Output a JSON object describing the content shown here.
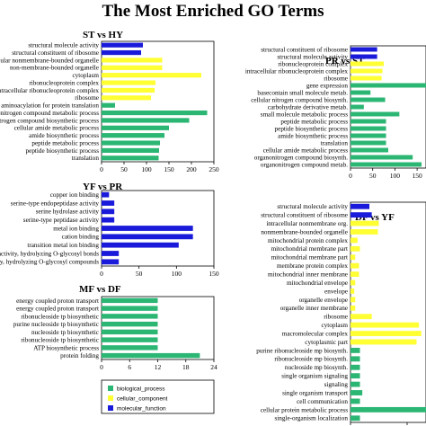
{
  "title": "The Most Enriched GO Terms",
  "legend": [
    {
      "name": "biological_process",
      "color": "#2bb673"
    },
    {
      "name": "cellular_component",
      "color": "#ffff33"
    },
    {
      "name": "molecular_function",
      "color": "#1a1adb"
    }
  ],
  "chart_data": [
    {
      "type": "bar",
      "orientation": "horizontal",
      "title": "ST vs HY",
      "xlim": [
        0,
        250
      ],
      "xticks": [
        0,
        50,
        100,
        150,
        200,
        250
      ],
      "grid": false,
      "categories": [
        "structural molecule activity",
        "structural constituent of ribosome",
        "intracellular nonmembrane-bounded organelle",
        "non-membrane-bounded organelle",
        "cytoplasm",
        "ribonucleoprotein complex",
        "intracellular ribonucleoprotein complex",
        "ribosome",
        "tRNA aminoacylation for protein translation",
        "organonitrogen compound metabolic process",
        "organonitrogen compound biosynthetic process",
        "cellular amide metabolic process",
        "amide biosynthetic process",
        "peptide metabolic process",
        "peptide biosynthetic process",
        "translation"
      ],
      "values": [
        92,
        88,
        135,
        135,
        222,
        120,
        118,
        110,
        30,
        235,
        195,
        150,
        140,
        130,
        128,
        127
      ],
      "classes": [
        "molecular_function",
        "molecular_function",
        "cellular_component",
        "cellular_component",
        "cellular_component",
        "cellular_component",
        "cellular_component",
        "cellular_component",
        "biological_process",
        "biological_process",
        "biological_process",
        "biological_process",
        "biological_process",
        "biological_process",
        "biological_process",
        "biological_process"
      ]
    },
    {
      "type": "bar",
      "orientation": "horizontal",
      "title": "PR vs ST",
      "xlim": [
        0,
        170
      ],
      "xticks": [
        0,
        50,
        100,
        150
      ],
      "grid": false,
      "categories": [
        "structural constituent of ribosome",
        "structural molecule activity",
        "ribonucleoprotein complex",
        "intracellular ribonucleoprotein complex",
        "ribosome",
        "gene expression",
        "basecontain small molecule metab.",
        "cellular nitrogen compound biosynth.",
        "carbohydrate derivative metab.",
        "small molecule metabolic process",
        "peptide metabolic process",
        "peptide biosynthetic process",
        "amide biosynthetic process",
        "translation",
        "cellular amide metabolic process",
        "organonitrogen compound biosynth.",
        "organonitrogen compound metab."
      ],
      "values": [
        60,
        60,
        75,
        72,
        70,
        170,
        45,
        78,
        30,
        110,
        80,
        80,
        80,
        80,
        85,
        140,
        160
      ],
      "classes": [
        "molecular_function",
        "molecular_function",
        "cellular_component",
        "cellular_component",
        "cellular_component",
        "biological_process",
        "biological_process",
        "biological_process",
        "biological_process",
        "biological_process",
        "biological_process",
        "biological_process",
        "biological_process",
        "biological_process",
        "biological_process",
        "biological_process",
        "biological_process"
      ]
    },
    {
      "type": "bar",
      "orientation": "horizontal",
      "title": "YF vs PR",
      "xlim": [
        0,
        150
      ],
      "xticks": [
        0,
        50,
        100,
        150
      ],
      "grid": false,
      "categories": [
        "copper ion binding",
        "serine-type endopeptidase activity",
        "serine hydrolase activity",
        "serine-type peptidase activity",
        "metal ion binding",
        "cation binding",
        "transition metal ion binding",
        "hydrolase activity, hydrolyzing O-glycosyl bonds",
        "hydrolase activity, hydrolyzing O-glycosyl compounds"
      ],
      "values": [
        10,
        17,
        17,
        17,
        122,
        122,
        103,
        23,
        23
      ],
      "classes": [
        "molecular_function",
        "molecular_function",
        "molecular_function",
        "molecular_function",
        "molecular_function",
        "molecular_function",
        "molecular_function",
        "molecular_function",
        "molecular_function"
      ]
    },
    {
      "type": "bar",
      "orientation": "horizontal",
      "title": "MF vs DF",
      "xlim": [
        0,
        24
      ],
      "xticks": [
        0,
        6,
        12,
        18,
        24
      ],
      "grid": false,
      "categories": [
        "energy coupled proton transport",
        "energy coupled proton transport",
        "ribonucleoside tp biosynthetic",
        "purine nucleoside tp biosynthetic",
        "nucleoside tp biosynthetic",
        "ribonucleoside tp biosynthetic",
        "ATP biosynthetic process",
        "protein folding"
      ],
      "values": [
        12,
        12,
        12,
        12,
        12,
        12,
        12,
        21
      ],
      "classes": [
        "biological_process",
        "biological_process",
        "biological_process",
        "biological_process",
        "biological_process",
        "biological_process",
        "biological_process",
        "biological_process"
      ]
    },
    {
      "type": "bar",
      "orientation": "horizontal",
      "title": "DF vs YF",
      "xlim": [
        0,
        160
      ],
      "xticks": [
        0,
        120
      ],
      "grid": false,
      "categories": [
        "structural molecule activity",
        "structural constituent of ribosome",
        "intracellular nonmembrane org.",
        "nonmembrane-bounded organelle",
        "mitochondrial protein complex",
        "mitochondrial membrane part",
        "mitochondrial membrane part",
        "membrane protein complex",
        "mitochondrial inner membrane",
        "mitochondrial envelope",
        "envelope",
        "organelle envelope",
        "organelle inner membrane",
        "ribosome",
        "cytoplasm",
        "macromolecular complex",
        "cytoplasmic part",
        "purine ribonucleoside mp biosynth.",
        "ribonucleoside mp biosynth.",
        "nucleoside mp biosynth.",
        "single organism signaling",
        "signaling",
        "single organism transport",
        "cell communication",
        "cellular protein metabolic process",
        "single-organism localization"
      ],
      "values": [
        40,
        45,
        60,
        58,
        15,
        20,
        10,
        18,
        18,
        10,
        8,
        10,
        10,
        45,
        145,
        150,
        140,
        20,
        20,
        20,
        20,
        20,
        25,
        20,
        160,
        20
      ],
      "classes": [
        "molecular_function",
        "molecular_function",
        "cellular_component",
        "cellular_component",
        "cellular_component",
        "cellular_component",
        "cellular_component",
        "cellular_component",
        "cellular_component",
        "cellular_component",
        "cellular_component",
        "cellular_component",
        "cellular_component",
        "cellular_component",
        "cellular_component",
        "cellular_component",
        "cellular_component",
        "biological_process",
        "biological_process",
        "biological_process",
        "biological_process",
        "biological_process",
        "biological_process",
        "biological_process",
        "biological_process",
        "biological_process"
      ]
    }
  ]
}
